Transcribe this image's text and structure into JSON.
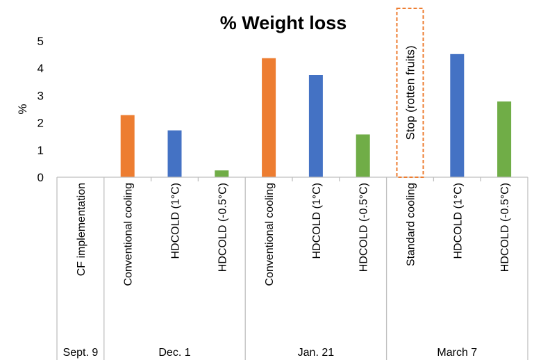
{
  "chart_data": {
    "type": "bar",
    "title": "% Weight loss",
    "ylabel": "%",
    "ylim": [
      0,
      5
    ],
    "yticks": [
      0,
      1,
      2,
      3,
      4,
      5
    ],
    "grid": false,
    "categories": [
      "CF implementation",
      "Conventional cooling",
      "HDCOLD (1°C)",
      "HDCOLD (-0.5°C)",
      "Conventional cooling",
      "HDCOLD (1°C)",
      "HDCOLD (-0.5°C)",
      "Standard cooling",
      "HDCOLD (1°C)",
      "HDCOLD (-0.5°C)"
    ],
    "groups": [
      {
        "label": "Sept. 9",
        "count": 1
      },
      {
        "label": "Dec. 1",
        "count": 3
      },
      {
        "label": "Jan. 21",
        "count": 3
      },
      {
        "label": "March 7",
        "count": 3
      }
    ],
    "values": [
      0,
      2.28,
      1.72,
      0.25,
      4.37,
      3.75,
      1.57,
      null,
      4.52,
      2.78
    ],
    "bar_colors": [
      "#ED7D31",
      "#ED7D31",
      "#4472C4",
      "#70AD47",
      "#ED7D31",
      "#4472C4",
      "#70AD47",
      "#ED7D31",
      "#4472C4",
      "#70AD47"
    ],
    "annotations": [
      {
        "category_index": 7,
        "text": "Stop (rotten fruits)",
        "box_color": "#ED7D31"
      }
    ]
  }
}
